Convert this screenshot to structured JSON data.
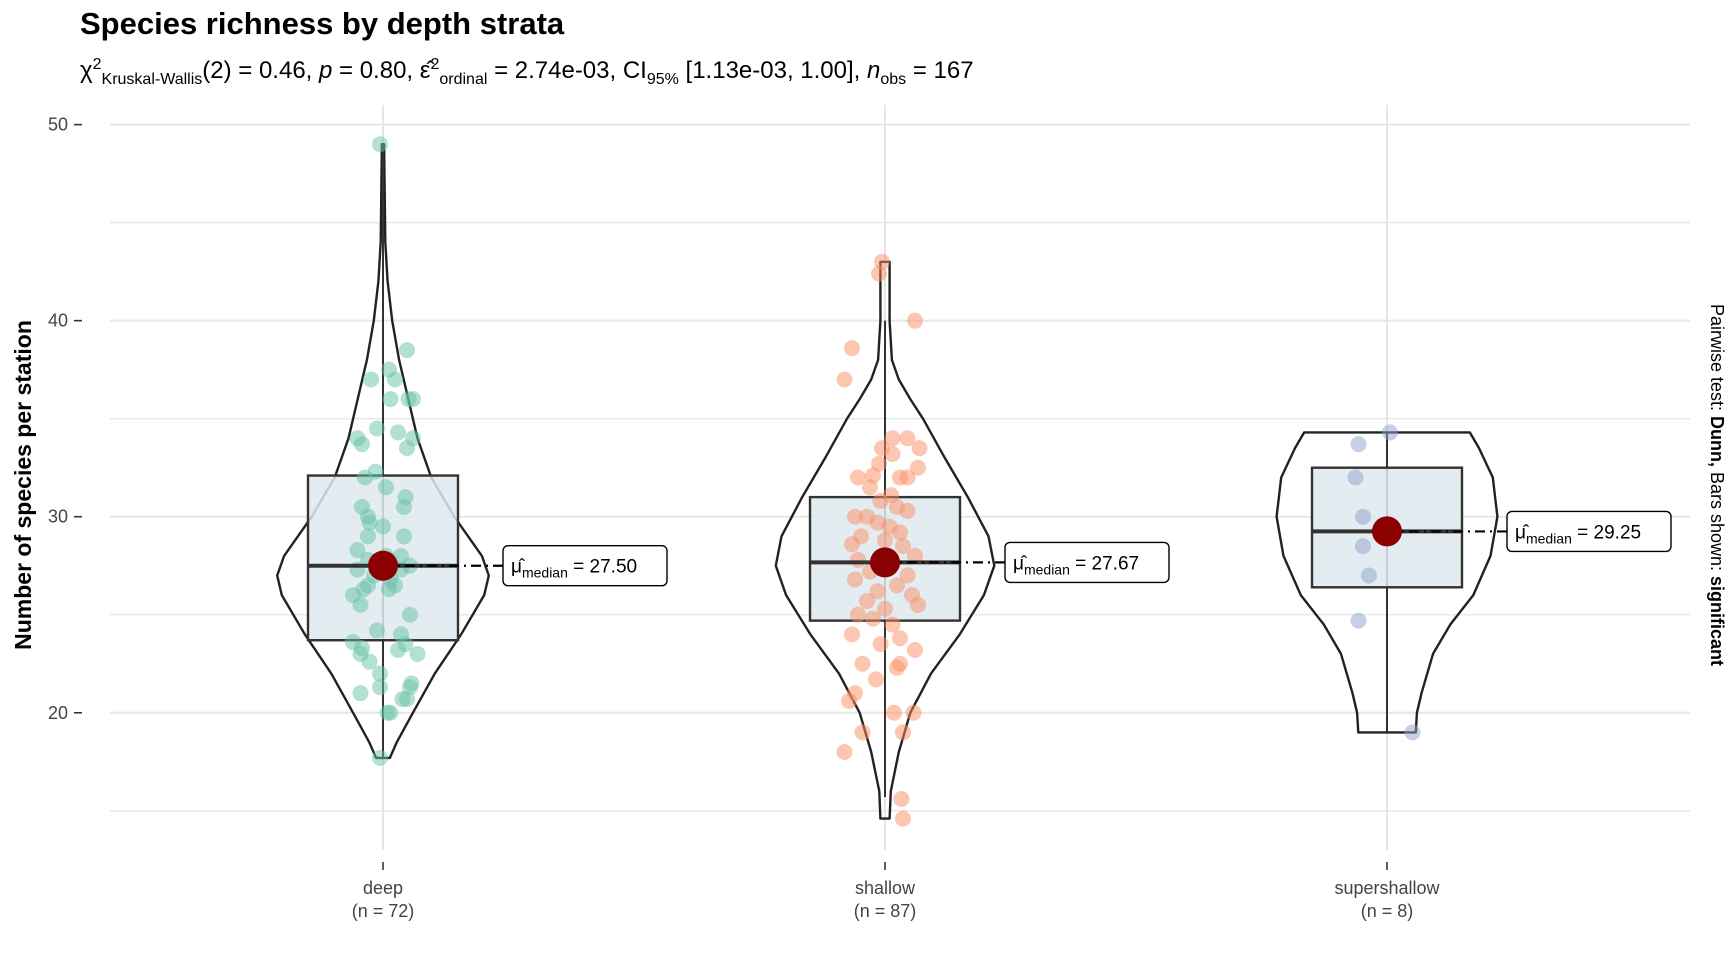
{
  "chart_data": {
    "type": "violin",
    "title": "Species richness by depth strata",
    "subtitle": {
      "chi_symbol": "χ",
      "chi_sup": "2",
      "chi_sub": "Kruskal-Wallis",
      "df": "(2) = 0.46, ",
      "p_label": "p",
      "p_value": " = 0.80, ",
      "eps_symbol": "ε̂",
      "eps_sup": "2",
      "eps_sub": "ordinal",
      "eps_value": " = 2.74e-03, CI",
      "ci_sub": "95%",
      "ci_value": " [1.13e-03, 1.00], ",
      "n_label": "n",
      "n_sub": "obs",
      "n_value": " = 167"
    },
    "ylabel": "Number of species per station",
    "right_caption_prefix": "Pairwise test: ",
    "right_caption_test": "Dunn,",
    "right_caption_mid": " Bars shown: ",
    "right_caption_sig": "significant",
    "ylim": [
      13,
      51
    ],
    "yticks": [
      20,
      30,
      40,
      50
    ],
    "grid": true,
    "groups": [
      {
        "category": "deep",
        "n_label": "(n = 72)",
        "color": "#66c2a5",
        "median": 27.5,
        "median_label": "μ̂median = 27.50",
        "q1": 23.7,
        "q3": 32.1,
        "whisker_min": 17.7,
        "whisker_max": 49,
        "violin": [
          [
            17.7,
            0.06
          ],
          [
            18.5,
            0.12
          ],
          [
            20,
            0.26
          ],
          [
            22,
            0.45
          ],
          [
            24,
            0.68
          ],
          [
            26,
            0.88
          ],
          [
            27,
            0.92
          ],
          [
            28,
            0.86
          ],
          [
            30,
            0.62
          ],
          [
            32,
            0.42
          ],
          [
            34,
            0.3
          ],
          [
            36,
            0.22
          ],
          [
            38,
            0.14
          ],
          [
            40,
            0.08
          ],
          [
            42,
            0.04
          ],
          [
            44,
            0.02
          ],
          [
            49,
            0.01
          ]
        ],
        "points": [
          [
            -0.02,
            49
          ],
          [
            0.16,
            38.5
          ],
          [
            0.04,
            37.5
          ],
          [
            -0.08,
            37
          ],
          [
            0.08,
            37
          ],
          [
            0.17,
            36
          ],
          [
            0.2,
            36
          ],
          [
            0.05,
            36
          ],
          [
            -0.04,
            34.5
          ],
          [
            0.1,
            34.3
          ],
          [
            0.2,
            34
          ],
          [
            -0.17,
            34
          ],
          [
            -0.14,
            33.7
          ],
          [
            0.16,
            33.5
          ],
          [
            -0.05,
            32.3
          ],
          [
            -0.12,
            32
          ],
          [
            0.02,
            31.5
          ],
          [
            0.15,
            31
          ],
          [
            0.14,
            30.5
          ],
          [
            -0.14,
            30.5
          ],
          [
            -0.1,
            30
          ],
          [
            0.0,
            29.5
          ],
          [
            -0.09,
            29.7
          ],
          [
            -0.1,
            29
          ],
          [
            0.14,
            29
          ],
          [
            -0.17,
            28.3
          ],
          [
            0.02,
            28
          ],
          [
            0.12,
            28
          ],
          [
            -0.1,
            27.8
          ],
          [
            0.18,
            27.5
          ],
          [
            0.12,
            27.3
          ],
          [
            -0.17,
            27.3
          ],
          [
            -0.06,
            27
          ],
          [
            0.08,
            26.5
          ],
          [
            0.04,
            26.3
          ],
          [
            0.05,
            26.8
          ],
          [
            -0.1,
            26.5
          ],
          [
            -0.13,
            26.3
          ],
          [
            -0.2,
            26
          ],
          [
            -0.15,
            25.5
          ],
          [
            0.18,
            25
          ],
          [
            -0.04,
            24.2
          ],
          [
            0.12,
            24
          ],
          [
            0.15,
            23.5
          ],
          [
            -0.2,
            23.6
          ],
          [
            -0.14,
            23.3
          ],
          [
            0.1,
            23.2
          ],
          [
            -0.15,
            23
          ],
          [
            0.23,
            23
          ],
          [
            -0.09,
            22.6
          ],
          [
            -0.02,
            22
          ],
          [
            0.19,
            21.5
          ],
          [
            0.18,
            21.3
          ],
          [
            -0.02,
            21.3
          ],
          [
            -0.15,
            21
          ],
          [
            0.16,
            20.7
          ],
          [
            0.13,
            20.7
          ],
          [
            0.05,
            20
          ],
          [
            0.03,
            20
          ],
          [
            -0.02,
            17.7
          ]
        ]
      },
      {
        "category": "shallow",
        "n_label": "(n = 87)",
        "color": "#fc8d62",
        "median": 27.67,
        "median_label": "μ̂median = 27.67",
        "q1": 24.7,
        "q3": 31,
        "whisker_min": 15.7,
        "whisker_max": 40,
        "violin": [
          [
            14.6,
            0.04
          ],
          [
            16,
            0.05
          ],
          [
            18,
            0.12
          ],
          [
            20,
            0.22
          ],
          [
            22,
            0.4
          ],
          [
            24,
            0.65
          ],
          [
            26,
            0.86
          ],
          [
            27.5,
            0.95
          ],
          [
            29,
            0.9
          ],
          [
            31,
            0.72
          ],
          [
            33,
            0.52
          ],
          [
            35,
            0.33
          ],
          [
            36,
            0.22
          ],
          [
            37,
            0.12
          ],
          [
            38,
            0.06
          ],
          [
            40,
            0.04
          ],
          [
            43,
            0.04
          ]
        ],
        "points": [
          [
            -0.02,
            43
          ],
          [
            -0.04,
            42.4
          ],
          [
            0.2,
            40
          ],
          [
            -0.22,
            38.6
          ],
          [
            -0.27,
            37
          ],
          [
            0.05,
            34
          ],
          [
            0.15,
            34
          ],
          [
            -0.02,
            33.5
          ],
          [
            0.23,
            33.5
          ],
          [
            0.05,
            33.2
          ],
          [
            -0.04,
            32.7
          ],
          [
            0.22,
            32.5
          ],
          [
            -0.08,
            32.1
          ],
          [
            0.1,
            32
          ],
          [
            0.15,
            32
          ],
          [
            -0.18,
            32
          ],
          [
            -0.1,
            31.5
          ],
          [
            0.04,
            31.1
          ],
          [
            -0.03,
            30.8
          ],
          [
            0.08,
            30.5
          ],
          [
            0.15,
            30.3
          ],
          [
            -0.2,
            30
          ],
          [
            -0.12,
            30
          ],
          [
            -0.05,
            29.7
          ],
          [
            0.03,
            29.5
          ],
          [
            0.1,
            29.2
          ],
          [
            -0.16,
            29
          ],
          [
            0.0,
            28.8
          ],
          [
            -0.22,
            28.6
          ],
          [
            0.12,
            28.5
          ],
          [
            0.2,
            28
          ],
          [
            -0.18,
            27.8
          ],
          [
            0.05,
            27.6
          ],
          [
            -0.1,
            27.2
          ],
          [
            0.15,
            27
          ],
          [
            -0.2,
            26.8
          ],
          [
            0.08,
            26.5
          ],
          [
            -0.05,
            26.2
          ],
          [
            0.18,
            26
          ],
          [
            -0.12,
            25.7
          ],
          [
            0.0,
            25.3
          ],
          [
            0.22,
            25.5
          ],
          [
            -0.18,
            25
          ],
          [
            -0.08,
            24.8
          ],
          [
            0.05,
            24.5
          ],
          [
            -0.22,
            24
          ],
          [
            0.1,
            23.8
          ],
          [
            -0.03,
            23.5
          ],
          [
            0.2,
            23.2
          ],
          [
            -0.15,
            22.5
          ],
          [
            0.08,
            22.3
          ],
          [
            0.1,
            22.5
          ],
          [
            -0.06,
            21.7
          ],
          [
            -0.2,
            21
          ],
          [
            -0.24,
            20.6
          ],
          [
            0.06,
            20
          ],
          [
            0.19,
            20
          ],
          [
            -0.15,
            19
          ],
          [
            0.12,
            19
          ],
          [
            -0.27,
            18
          ],
          [
            0.11,
            15.6
          ],
          [
            0.12,
            14.6
          ]
        ]
      },
      {
        "category": "supershallow",
        "n_label": "(n = 8)",
        "color": "#8da0cb",
        "median": 29.25,
        "median_label": "μ̂median = 29.25",
        "q1": 26.4,
        "q3": 32.5,
        "whisker_min": 19,
        "whisker_max": 34.3,
        "violin": [
          [
            19,
            0.25
          ],
          [
            20,
            0.26
          ],
          [
            21,
            0.3
          ],
          [
            23,
            0.4
          ],
          [
            24.5,
            0.55
          ],
          [
            26,
            0.75
          ],
          [
            28,
            0.9
          ],
          [
            30,
            0.96
          ],
          [
            32,
            0.92
          ],
          [
            33.5,
            0.8
          ],
          [
            34.3,
            0.72
          ]
        ],
        "points": [
          [
            0.02,
            34.3
          ],
          [
            -0.19,
            33.7
          ],
          [
            -0.21,
            32
          ],
          [
            -0.16,
            30
          ],
          [
            -0.16,
            28.5
          ],
          [
            -0.12,
            27
          ],
          [
            -0.19,
            24.7
          ],
          [
            0.17,
            19
          ]
        ]
      }
    ]
  }
}
